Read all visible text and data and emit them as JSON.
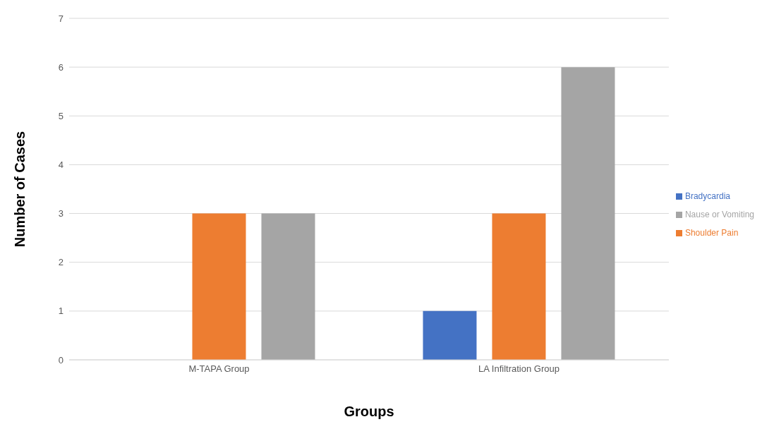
{
  "chart_data": {
    "type": "bar",
    "xlabel": "Groups",
    "ylabel": "Number of Cases",
    "categories": [
      "M-TAPA Group",
      "LA Infiltration Group"
    ],
    "series": [
      {
        "name": "Bradycardia",
        "color": "#4472c4",
        "values": [
          0,
          1
        ]
      },
      {
        "name": "Shoulder Pain",
        "color": "#ed7d31",
        "values": [
          3,
          3
        ]
      },
      {
        "name": "Nause or Vomiting",
        "color": "#a5a5a5",
        "values": [
          3,
          6
        ]
      }
    ],
    "ylim": [
      0,
      7
    ],
    "yticks": [
      0,
      1,
      2,
      3,
      4,
      5,
      6,
      7
    ],
    "grid": "y",
    "legend": "right"
  }
}
